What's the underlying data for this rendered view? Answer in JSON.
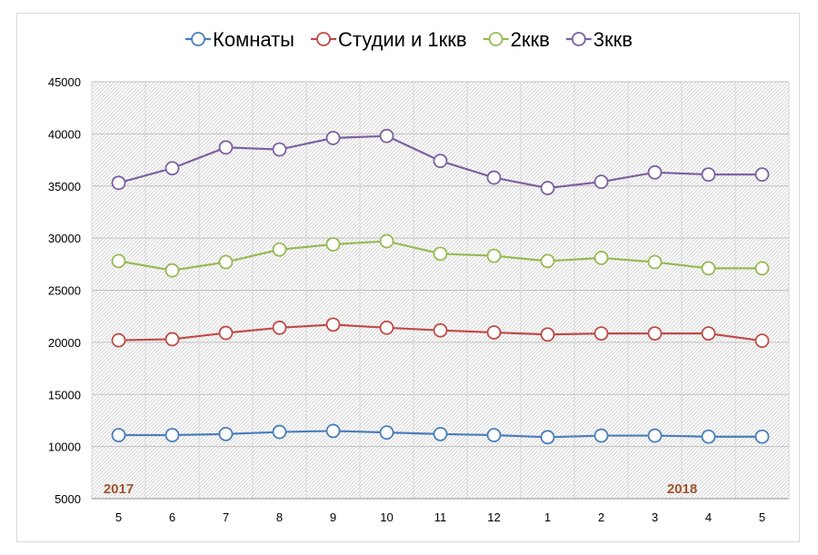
{
  "chart_data": {
    "type": "line",
    "title": "",
    "xlabel": "",
    "ylabel": "",
    "categories": [
      "5",
      "6",
      "7",
      "8",
      "9",
      "10",
      "11",
      "12",
      "1",
      "2",
      "3",
      "4",
      "5"
    ],
    "ylim": [
      5000,
      45000
    ],
    "yticks": [
      5000,
      10000,
      15000,
      20000,
      25000,
      30000,
      35000,
      40000,
      45000
    ],
    "grid": true,
    "legend_position": "top",
    "annotations": [
      {
        "text": "2017",
        "color": "#a0522d"
      },
      {
        "text": "2018",
        "color": "#a0522d"
      }
    ],
    "series": [
      {
        "name": "Комнаты",
        "color": "#4a7ebb",
        "values": [
          11100,
          11100,
          11200,
          11400,
          11500,
          11350,
          11200,
          11100,
          10900,
          11050,
          11050,
          10950,
          10950
        ]
      },
      {
        "name": "Студии и 1ккв",
        "color": "#be4b48",
        "values": [
          20200,
          20300,
          20900,
          21400,
          21700,
          21400,
          21150,
          20950,
          20750,
          20850,
          20850,
          20850,
          20150
        ]
      },
      {
        "name": "2ккв",
        "color": "#98b954",
        "values": [
          27800,
          26900,
          27700,
          28900,
          29400,
          29700,
          28500,
          28300,
          27800,
          28100,
          27700,
          27100,
          27100
        ]
      },
      {
        "name": "3ккв",
        "color": "#7d60a0",
        "values": [
          35300,
          36700,
          38700,
          38500,
          39600,
          39800,
          37400,
          35800,
          34800,
          35400,
          36300,
          36100,
          36100
        ]
      }
    ]
  }
}
